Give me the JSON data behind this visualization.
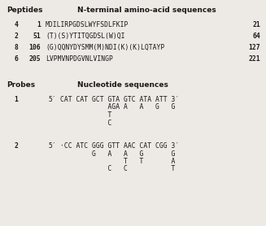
{
  "peptides_header_left": "Peptides",
  "peptides_header_right": "N-terminal amino-acid sequences",
  "peptide_rows": [
    {
      "col1": "4",
      "col2": "1",
      "seq": "MDILIRPGDSLWYFSDLFKIP",
      "end": "21"
    },
    {
      "col1": "2",
      "col2": "51",
      "seq": "(T)(S)YTITQGDSL(W)QI",
      "end": "64"
    },
    {
      "col1": "8",
      "col2": "106",
      "seq": "(G)QQNYDYSMM(M)NDI(K)(K)LQTAYP",
      "end": "127"
    },
    {
      "col1": "6",
      "col2": "205",
      "seq": "LVPMVNPDGVNLVINGP",
      "end": "221"
    }
  ],
  "probes_header_left": "Probes",
  "probes_header_right": "Nucleotide sequences",
  "probe1": {
    "label": "1",
    "line0": [
      "5′",
      "CAT CAT GCT GTA GTC ATA ATT 3′"
    ],
    "line1": "            AGA A   A   G   G",
    "line2": "            T",
    "line3": "            C"
  },
  "probe2": {
    "label": "2",
    "line0": [
      "5′",
      "·CC ATC GGG GTT AAC CAT CGG 3′"
    ],
    "line1": "        G   A   A   G       G",
    "line2": "                T   T       A",
    "line3": "            C   C       T"
  },
  "bg_color": "#ede9e4",
  "text_color": "#1a1a1a",
  "fs_header": 6.5,
  "fs_body": 5.8
}
